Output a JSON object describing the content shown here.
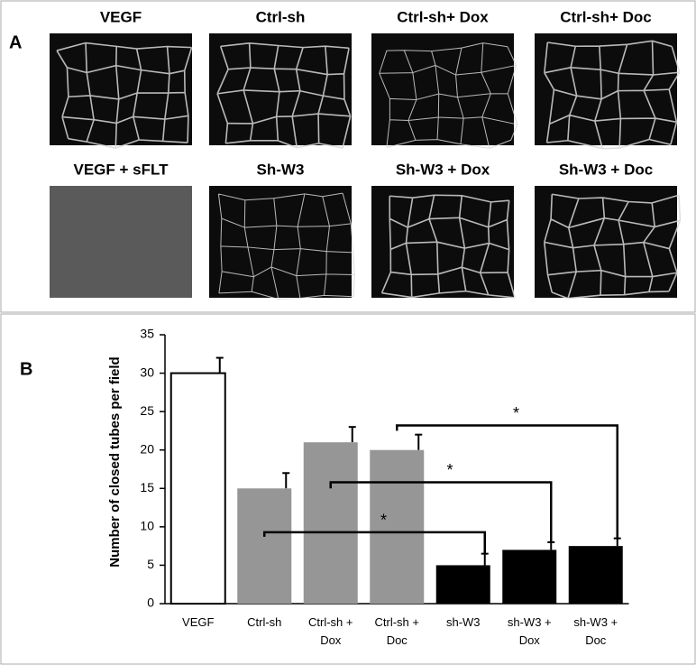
{
  "panel_a": {
    "label": "A",
    "images": [
      "VEGF",
      "Ctrl-sh",
      "Ctrl-sh+ Dox",
      "Ctrl-sh+ Doc",
      "VEGF + sFLT",
      "Sh-W3",
      "Sh-W3 + Dox",
      "Sh-W3 + Doc"
    ]
  },
  "chart_data": {
    "type": "bar",
    "panel_label": "B",
    "y_label": "Number of closed tubes per field",
    "categories": [
      "VEGF",
      "Ctrl-sh",
      "Ctrl-sh +\nDox",
      "Ctrl-sh +\nDoc",
      "sh-W3",
      "sh-W3 +\nDox",
      "sh-W3 +\nDoc"
    ],
    "values": [
      30,
      15,
      21,
      20,
      5,
      7,
      7.5
    ],
    "errors": [
      2,
      2,
      2,
      2,
      1.5,
      1,
      1
    ],
    "colors": [
      "#ffffff",
      "#969696",
      "#969696",
      "#969696",
      "#000000",
      "#000000",
      "#000000"
    ],
    "ylim": [
      0,
      35
    ],
    "yticks": [
      0,
      5,
      10,
      15,
      20,
      25,
      30,
      35
    ],
    "annotations": [
      {
        "from": 1,
        "to": 4,
        "label": "*"
      },
      {
        "from": 2,
        "to": 5,
        "label": "*"
      },
      {
        "from": 3,
        "to": 6,
        "label": "*"
      }
    ]
  }
}
